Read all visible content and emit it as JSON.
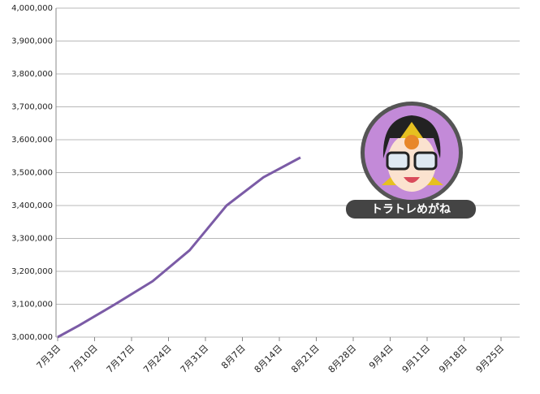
{
  "chart_data": {
    "type": "line",
    "x": [
      "7月3日",
      "7月7日",
      "7月14日",
      "7月21日",
      "7月28日",
      "8月4日",
      "8月11日",
      "8月18日"
    ],
    "series": [
      {
        "color": "#7b5ba6",
        "values": [
          3000000,
          3035000,
          3101000,
          3170000,
          3264000,
          3400000,
          3486000,
          3546000
        ]
      }
    ],
    "ylim": [
      3000000,
      4000000
    ],
    "yticks": [
      {
        "value": 3000000,
        "label": "3,000,000"
      },
      {
        "value": 3100000,
        "label": "3,100,000"
      },
      {
        "value": 3200000,
        "label": "3,200,000"
      },
      {
        "value": 3300000,
        "label": "3,300,000"
      },
      {
        "value": 3400000,
        "label": "3,400,000"
      },
      {
        "value": 3500000,
        "label": "3,500,000"
      },
      {
        "value": 3600000,
        "label": "3,600,000"
      },
      {
        "value": 3700000,
        "label": "3,700,000"
      },
      {
        "value": 3800000,
        "label": "3,800,000"
      },
      {
        "value": 3900000,
        "label": "3,900,000"
      },
      {
        "value": 4000000,
        "label": "4,000,000"
      }
    ],
    "xticks": [
      "7月3日",
      "7月10日",
      "7月17日",
      "7月24日",
      "7月31日",
      "8月7日",
      "8月14日",
      "8月21日",
      "8月28日",
      "9月4日",
      "9月11日",
      "9月18日",
      "9月25日"
    ],
    "grid": true,
    "annotation": "トラトレめがね"
  }
}
